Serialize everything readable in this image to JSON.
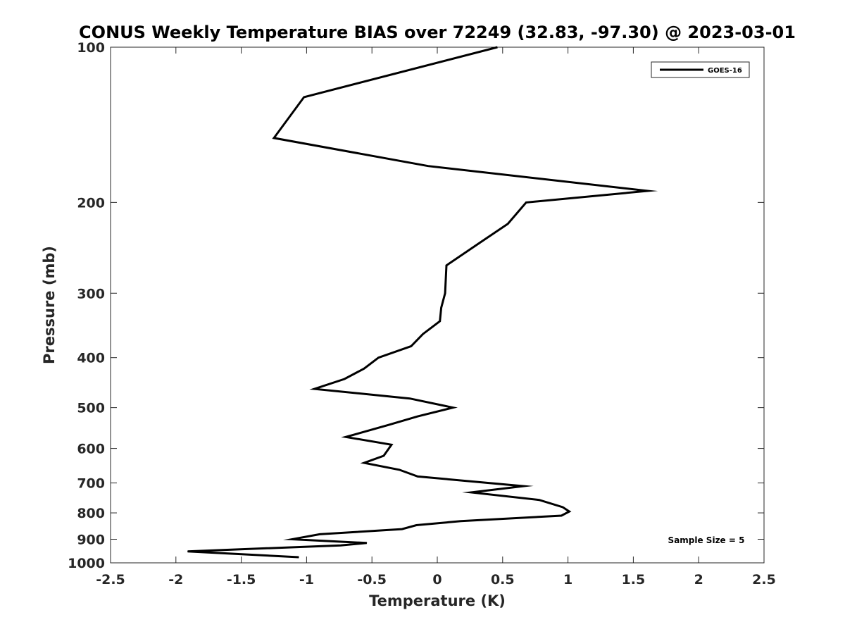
{
  "chart_data": {
    "type": "line",
    "title": "CONUS Weekly Temperature BIAS over 72249 (32.83, -97.30) @ 2023-03-01",
    "xlabel": "Temperature (K)",
    "ylabel": "Pressure (mb)",
    "xlim": [
      -2.5,
      2.5
    ],
    "ylim": [
      100,
      1000
    ],
    "y_scale": "log",
    "y_reversed": true,
    "grid": false,
    "legend_position": "top-right",
    "x_ticks": [
      -2.5,
      -2,
      -1.5,
      -1,
      -0.5,
      0,
      0.5,
      1,
      1.5,
      2,
      2.5
    ],
    "x_tick_labels": [
      "-2.5",
      "-2",
      "-1.5",
      "-1",
      "-0.5",
      "0",
      "0.5",
      "1",
      "1.5",
      "2",
      "2.5"
    ],
    "y_ticks": [
      100,
      200,
      300,
      400,
      500,
      600,
      700,
      800,
      900,
      1000
    ],
    "y_tick_labels": [
      "100",
      "200",
      "300",
      "400",
      "500",
      "600",
      "700",
      "800",
      "900",
      "1000"
    ],
    "series": [
      {
        "name": "GOES-16",
        "color": "#000000",
        "points": [
          {
            "x": 0.46,
            "y": 100
          },
          {
            "x": -1.02,
            "y": 125
          },
          {
            "x": -1.25,
            "y": 150
          },
          {
            "x": -0.07,
            "y": 170
          },
          {
            "x": 1.61,
            "y": 190
          },
          {
            "x": 0.68,
            "y": 200
          },
          {
            "x": 0.54,
            "y": 220
          },
          {
            "x": 0.32,
            "y": 240
          },
          {
            "x": 0.07,
            "y": 265
          },
          {
            "x": 0.06,
            "y": 300
          },
          {
            "x": 0.03,
            "y": 320
          },
          {
            "x": 0.02,
            "y": 340
          },
          {
            "x": -0.11,
            "y": 360
          },
          {
            "x": -0.2,
            "y": 380
          },
          {
            "x": -0.45,
            "y": 400
          },
          {
            "x": -0.56,
            "y": 420
          },
          {
            "x": -0.71,
            "y": 440
          },
          {
            "x": -0.94,
            "y": 460
          },
          {
            "x": -0.21,
            "y": 480
          },
          {
            "x": 0.12,
            "y": 500
          },
          {
            "x": -0.15,
            "y": 520
          },
          {
            "x": -0.37,
            "y": 540
          },
          {
            "x": -0.7,
            "y": 570
          },
          {
            "x": -0.35,
            "y": 590
          },
          {
            "x": -0.41,
            "y": 620
          },
          {
            "x": -0.56,
            "y": 640
          },
          {
            "x": -0.29,
            "y": 660
          },
          {
            "x": -0.15,
            "y": 680
          },
          {
            "x": 0.66,
            "y": 710
          },
          {
            "x": 0.26,
            "y": 730
          },
          {
            "x": 0.78,
            "y": 755
          },
          {
            "x": 0.96,
            "y": 780
          },
          {
            "x": 1.01,
            "y": 795
          },
          {
            "x": 0.95,
            "y": 810
          },
          {
            "x": 0.18,
            "y": 830
          },
          {
            "x": -0.16,
            "y": 845
          },
          {
            "x": -0.27,
            "y": 860
          },
          {
            "x": -0.9,
            "y": 880
          },
          {
            "x": -1.11,
            "y": 900
          },
          {
            "x": -0.54,
            "y": 915
          },
          {
            "x": -0.74,
            "y": 925
          },
          {
            "x": -1.91,
            "y": 950
          },
          {
            "x": -1.06,
            "y": 975
          }
        ]
      }
    ],
    "annotations": [
      "Sample Size = 5"
    ]
  }
}
